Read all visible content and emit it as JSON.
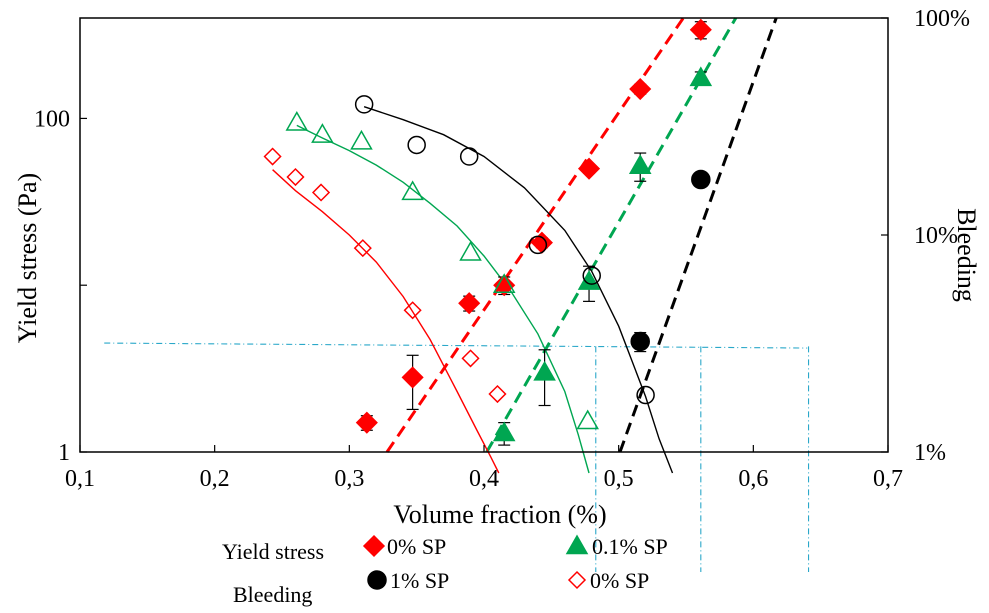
{
  "chart_data": {
    "type": "scatter",
    "title": "",
    "xlabel": "Volume fraction (%)",
    "ylabel": "Yield stress (Pa)",
    "y2label": "Bleeding",
    "xlim": [
      0.1,
      0.7
    ],
    "x_ticks": [
      "0,1",
      "0,2",
      "0,3",
      "0,4",
      "0,5",
      "0,6",
      "0,7"
    ],
    "x_tick_values": [
      0.1,
      0.2,
      0.3,
      0.4,
      0.5,
      0.6,
      0.7
    ],
    "y_scale": "log",
    "ylim": [
      1,
      400
    ],
    "y_ticks": [
      "1",
      "100"
    ],
    "y_tick_values": [
      1,
      100
    ],
    "y2_scale": "log",
    "y2lim": [
      0.01,
      1
    ],
    "y2_ticks": [
      "1%",
      "10%",
      "100%"
    ],
    "y2_tick_values": [
      0.01,
      0.1,
      1
    ],
    "legend": {
      "position": "bottom",
      "group_labels": [
        "Yield stress",
        "Bleeding"
      ],
      "entries": [
        "0% SP",
        "0.1% SP",
        "1% SP",
        "0% SP"
      ]
    },
    "series": [
      {
        "name": "0% SP",
        "group": "Yield stress",
        "axis": "left",
        "marker": "diamond-filled",
        "color": "#ff0000",
        "x": [
          0.313,
          0.347,
          0.389,
          0.415,
          0.443,
          0.478,
          0.516,
          0.561
        ],
        "y": [
          1.5,
          2.8,
          7.8,
          10,
          18,
          50,
          150,
          340
        ],
        "err": [
          0.15,
          1.0,
          0.8,
          1.2,
          1.2,
          3,
          10,
          40
        ],
        "fit": {
          "style": "dashed",
          "x": [
            0.328,
            0.548
          ],
          "y": [
            1,
            400
          ]
        }
      },
      {
        "name": "0.1% SP",
        "group": "Yield stress",
        "axis": "left",
        "marker": "triangle-filled",
        "color": "#00a651",
        "x": [
          0.415,
          0.445,
          0.478,
          0.516,
          0.561
        ],
        "y": [
          1.3,
          3,
          10.5,
          52,
          175
        ],
        "err": [
          0.2,
          1.1,
          2.5,
          10,
          15
        ],
        "fit": {
          "style": "dashed",
          "x": [
            0.402,
            0.587
          ],
          "y": [
            1,
            400
          ]
        }
      },
      {
        "name": "1% SP",
        "group": "Yield stress",
        "axis": "left",
        "marker": "circle-filled",
        "color": "#000000",
        "x": [
          0.516,
          0.561
        ],
        "y": [
          4.6,
          43
        ],
        "err": [
          0.6,
          0
        ],
        "fit": {
          "style": "dashed",
          "x": [
            0.501,
            0.617
          ],
          "y": [
            1,
            400
          ]
        }
      },
      {
        "name": "0% SP",
        "group": "Bleeding",
        "axis": "right",
        "marker": "diamond-open",
        "color": "#ff0000",
        "x": [
          0.243,
          0.26,
          0.279,
          0.31,
          0.347,
          0.39,
          0.41
        ],
        "y": [
          0.23,
          0.185,
          0.157,
          0.087,
          0.045,
          0.027,
          0.0185
        ],
        "fit": {
          "style": "solid",
          "x": [
            0.243,
            0.26,
            0.28,
            0.3,
            0.32,
            0.34,
            0.36,
            0.38,
            0.395,
            0.405,
            0.411
          ],
          "y": [
            0.2,
            0.16,
            0.128,
            0.1,
            0.075,
            0.052,
            0.033,
            0.019,
            0.0125,
            0.0095,
            0.008
          ]
        }
      },
      {
        "name": "0.1% SP",
        "group": "Bleeding",
        "axis": "right",
        "marker": "triangle-open",
        "color": "#00a651",
        "x": [
          0.261,
          0.28,
          0.309,
          0.347,
          0.39,
          0.415,
          0.477
        ],
        "y": [
          0.33,
          0.29,
          0.27,
          0.158,
          0.083,
          0.059,
          0.0139
        ],
        "fit": {
          "style": "solid",
          "x": [
            0.261,
            0.28,
            0.3,
            0.32,
            0.34,
            0.36,
            0.38,
            0.4,
            0.42,
            0.44,
            0.46,
            0.47,
            0.478
          ],
          "y": [
            0.32,
            0.28,
            0.245,
            0.21,
            0.175,
            0.14,
            0.11,
            0.08,
            0.055,
            0.035,
            0.019,
            0.012,
            0.008
          ]
        }
      },
      {
        "name": "1% SP",
        "group": "Bleeding",
        "axis": "right",
        "marker": "circle-open",
        "color": "#000000",
        "x": [
          0.311,
          0.35,
          0.389,
          0.44,
          0.48,
          0.52
        ],
        "y": [
          0.4,
          0.26,
          0.23,
          0.09,
          0.065,
          0.0183
        ],
        "fit": {
          "style": "solid",
          "x": [
            0.311,
            0.34,
            0.37,
            0.4,
            0.43,
            0.46,
            0.48,
            0.5,
            0.52,
            0.53,
            0.54
          ],
          "y": [
            0.39,
            0.34,
            0.29,
            0.23,
            0.165,
            0.105,
            0.068,
            0.038,
            0.018,
            0.0115,
            0.008
          ]
        }
      }
    ]
  }
}
